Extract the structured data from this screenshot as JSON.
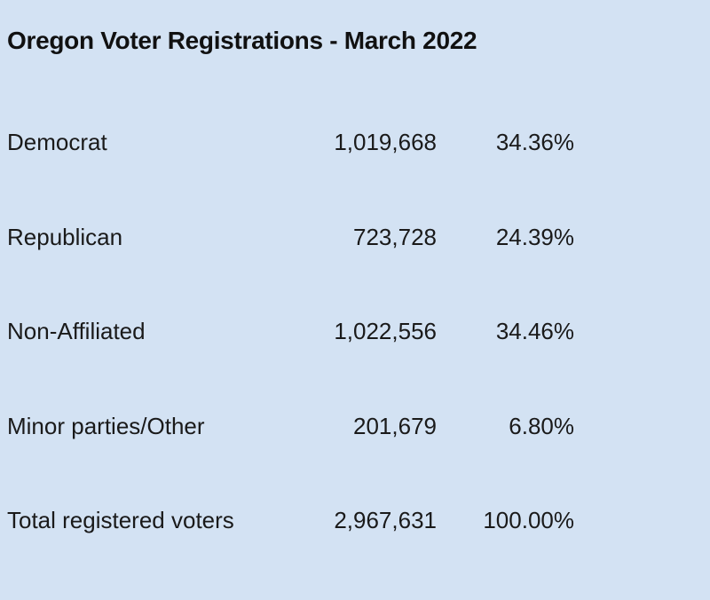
{
  "table": {
    "title": "Oregon Voter Registrations - March 2022",
    "rows": [
      {
        "label": "Democrat",
        "count": "1,019,668",
        "percent": "34.36%"
      },
      {
        "label": "Republican",
        "count": "723,728",
        "percent": "24.39%"
      },
      {
        "label": "Non-Affiliated",
        "count": "1,022,556",
        "percent": "34.46%"
      },
      {
        "label": "Minor parties/Other",
        "count": "201,679",
        "percent": "6.80%"
      },
      {
        "label": "Total registered voters",
        "count": "2,967,631",
        "percent": "100.00%"
      }
    ]
  },
  "colors": {
    "background": "#d3e2f3",
    "text": "#1a1a1a"
  }
}
